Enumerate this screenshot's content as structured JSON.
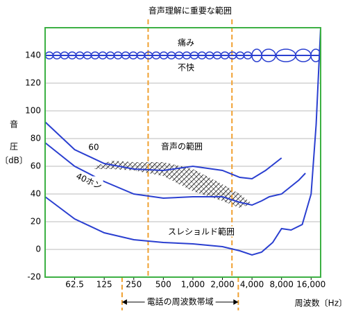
{
  "chart_data": {
    "type": "line",
    "ylabel": [
      "音",
      "圧",
      "〔dB〕"
    ],
    "xlabel": "周波数〔Hz〕",
    "xlim": [
      31.25,
      20000
    ],
    "xscale": "log",
    "xticks": [
      62.5,
      125,
      250,
      500,
      {
        "value": 1000,
        "label": "1,000"
      },
      {
        "value": 2000,
        "label": "2,000"
      },
      {
        "value": 4000,
        "label": "4,000"
      },
      {
        "value": 8000,
        "label": "8,000"
      },
      {
        "value": 16000,
        "label": "16,000"
      }
    ],
    "ylim": [
      -20,
      160
    ],
    "yticks": [
      -20,
      0,
      20,
      40,
      60,
      80,
      100,
      120,
      140
    ],
    "grid": true,
    "series": [
      {
        "color": "#2a3fd0",
        "x": [
          31.25,
          62.5,
          125,
          250,
          500,
          1000,
          2000,
          3000,
          4000,
          5500,
          8000
        ],
        "values": [
          92,
          72,
          62,
          58,
          57,
          60,
          57,
          52,
          51,
          57,
          66
        ]
      },
      {
        "color": "#2a3fd0",
        "x": [
          31.25,
          62.5,
          125,
          250,
          500,
          1000,
          2000,
          3000,
          4000,
          5000,
          6000,
          8000,
          12000,
          14000
        ],
        "values": [
          77,
          60,
          49,
          40,
          37,
          38,
          38,
          34,
          32,
          35,
          38,
          40,
          50,
          55
        ]
      },
      {
        "color": "#2a3fd0",
        "x": [
          31.25,
          62.5,
          125,
          250,
          500,
          1000,
          2000,
          3000,
          4000,
          5000,
          6500,
          8000,
          10000,
          13000,
          16000,
          18000,
          20000
        ],
        "values": [
          38,
          22,
          12,
          7,
          5,
          4,
          2,
          -1,
          -4,
          -2,
          5,
          15,
          14,
          18,
          40,
          90,
          160
        ]
      },
      {
        "color": "#2a3fd0",
        "x": [
          31.25,
          20000
        ],
        "values": [
          140,
          140
        ]
      }
    ],
    "speech_region": {
      "x": [
        100,
        150,
        250,
        500,
        1000,
        2000,
        3000,
        4000,
        3000,
        2000,
        1000,
        500,
        250,
        150,
        100
      ],
      "values": [
        60,
        64,
        63,
        63,
        58,
        47,
        40,
        33,
        30,
        35,
        42,
        53,
        57,
        58,
        58
      ]
    },
    "bands": [
      {
        "label": "音声理解に重要な範囲",
        "range": [
          350,
          2500
        ],
        "color": "#f0a030"
      },
      {
        "label": "電話の周波数帯域",
        "range": [
          190,
          2900
        ],
        "color": "#f0a030"
      }
    ],
    "annotations": [
      "痛み",
      "不快",
      "60",
      "40ホン",
      "音声の範囲",
      "スレショルド範囲"
    ]
  }
}
